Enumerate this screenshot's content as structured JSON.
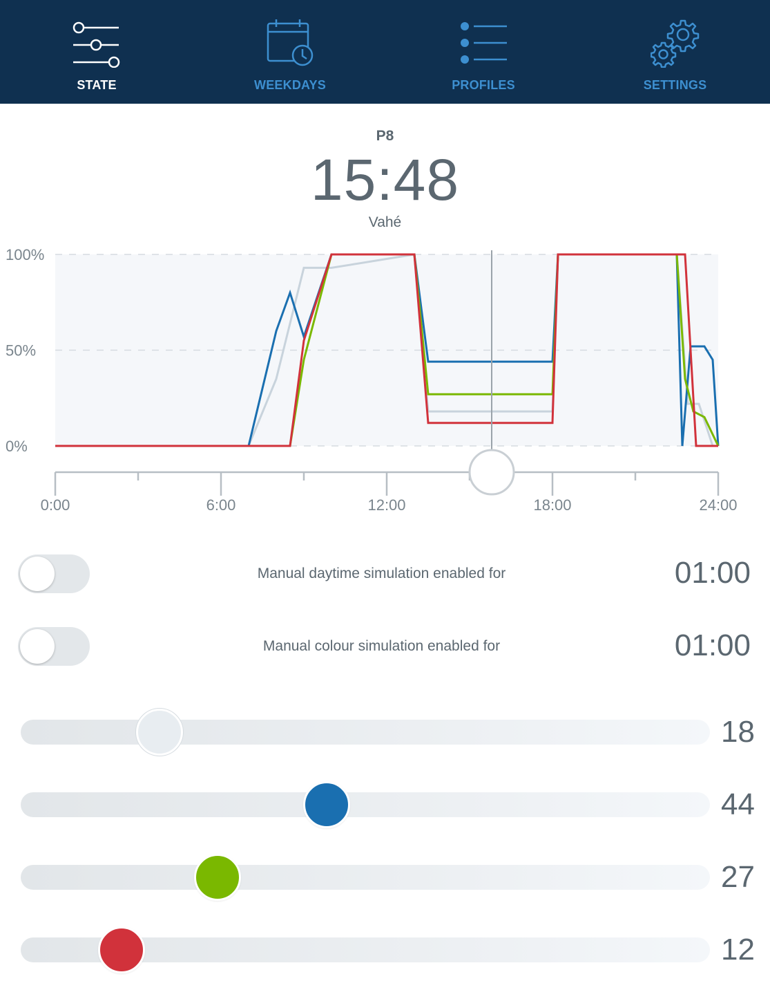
{
  "nav": {
    "tabs": [
      {
        "label": "STATE",
        "icon": "sliders-icon",
        "active": true
      },
      {
        "label": "WEEKDAYS",
        "icon": "calendar-clock-icon",
        "active": false
      },
      {
        "label": "PROFILES",
        "icon": "list-icon",
        "active": false
      },
      {
        "label": "SETTINGS",
        "icon": "gears-icon",
        "active": false
      }
    ]
  },
  "header": {
    "profile": "P8",
    "time": "15:48",
    "name": "Vahé"
  },
  "chart_data": {
    "type": "line",
    "y_ticks": [
      "100%",
      "50%",
      "0%"
    ],
    "x_ticks": [
      "0:00",
      "6:00",
      "12:00",
      "18:00",
      "24:00"
    ],
    "xlim": [
      0,
      24
    ],
    "ylim": [
      0,
      100
    ],
    "grid": true,
    "current_time": 15.8,
    "series": [
      {
        "color": "#c8d3dc",
        "points": [
          [
            0,
            0
          ],
          [
            7,
            0
          ],
          [
            8,
            35
          ],
          [
            9,
            93
          ],
          [
            10,
            93
          ],
          [
            13,
            100
          ],
          [
            13.5,
            18
          ],
          [
            18,
            18
          ],
          [
            18.2,
            100
          ],
          [
            22.5,
            100
          ],
          [
            22.9,
            22
          ],
          [
            23.3,
            22
          ],
          [
            23.8,
            0
          ]
        ]
      },
      {
        "color": "#1a6fb0",
        "points": [
          [
            0,
            0
          ],
          [
            7,
            0
          ],
          [
            8,
            60
          ],
          [
            8.5,
            80
          ],
          [
            9,
            57
          ],
          [
            10,
            100
          ],
          [
            13,
            100
          ],
          [
            13.5,
            44
          ],
          [
            18,
            44
          ],
          [
            18.2,
            100
          ],
          [
            22.5,
            100
          ],
          [
            22.7,
            0
          ],
          [
            23,
            52
          ],
          [
            23.5,
            52
          ],
          [
            23.8,
            45
          ],
          [
            24,
            0
          ]
        ]
      },
      {
        "color": "#7ab800",
        "points": [
          [
            0,
            0
          ],
          [
            8.5,
            0
          ],
          [
            9,
            45
          ],
          [
            10,
            100
          ],
          [
            13,
            100
          ],
          [
            13.5,
            27
          ],
          [
            18,
            27
          ],
          [
            18.2,
            100
          ],
          [
            22.5,
            100
          ],
          [
            22.8,
            35
          ],
          [
            23.1,
            18
          ],
          [
            23.5,
            15
          ],
          [
            24,
            0
          ]
        ]
      },
      {
        "color": "#d1323b",
        "points": [
          [
            0,
            0
          ],
          [
            8.5,
            0
          ],
          [
            9,
            55
          ],
          [
            10,
            100
          ],
          [
            13,
            100
          ],
          [
            13.5,
            12
          ],
          [
            18,
            12
          ],
          [
            18.2,
            100
          ],
          [
            22.8,
            100
          ],
          [
            23.2,
            0
          ],
          [
            24,
            0
          ]
        ]
      }
    ]
  },
  "toggles": [
    {
      "label": "Manual daytime simulation enabled for",
      "value": "01:00",
      "on": false
    },
    {
      "label": "Manual colour simulation enabled for",
      "value": "01:00",
      "on": false
    }
  ],
  "sliders": [
    {
      "value": 18,
      "display": "18",
      "color": "#e8edf1"
    },
    {
      "value": 44,
      "display": "44",
      "color": "#1a6fb0"
    },
    {
      "value": 27,
      "display": "27",
      "color": "#7ab800"
    },
    {
      "value": 12,
      "display": "12",
      "color": "#d1323b"
    }
  ]
}
